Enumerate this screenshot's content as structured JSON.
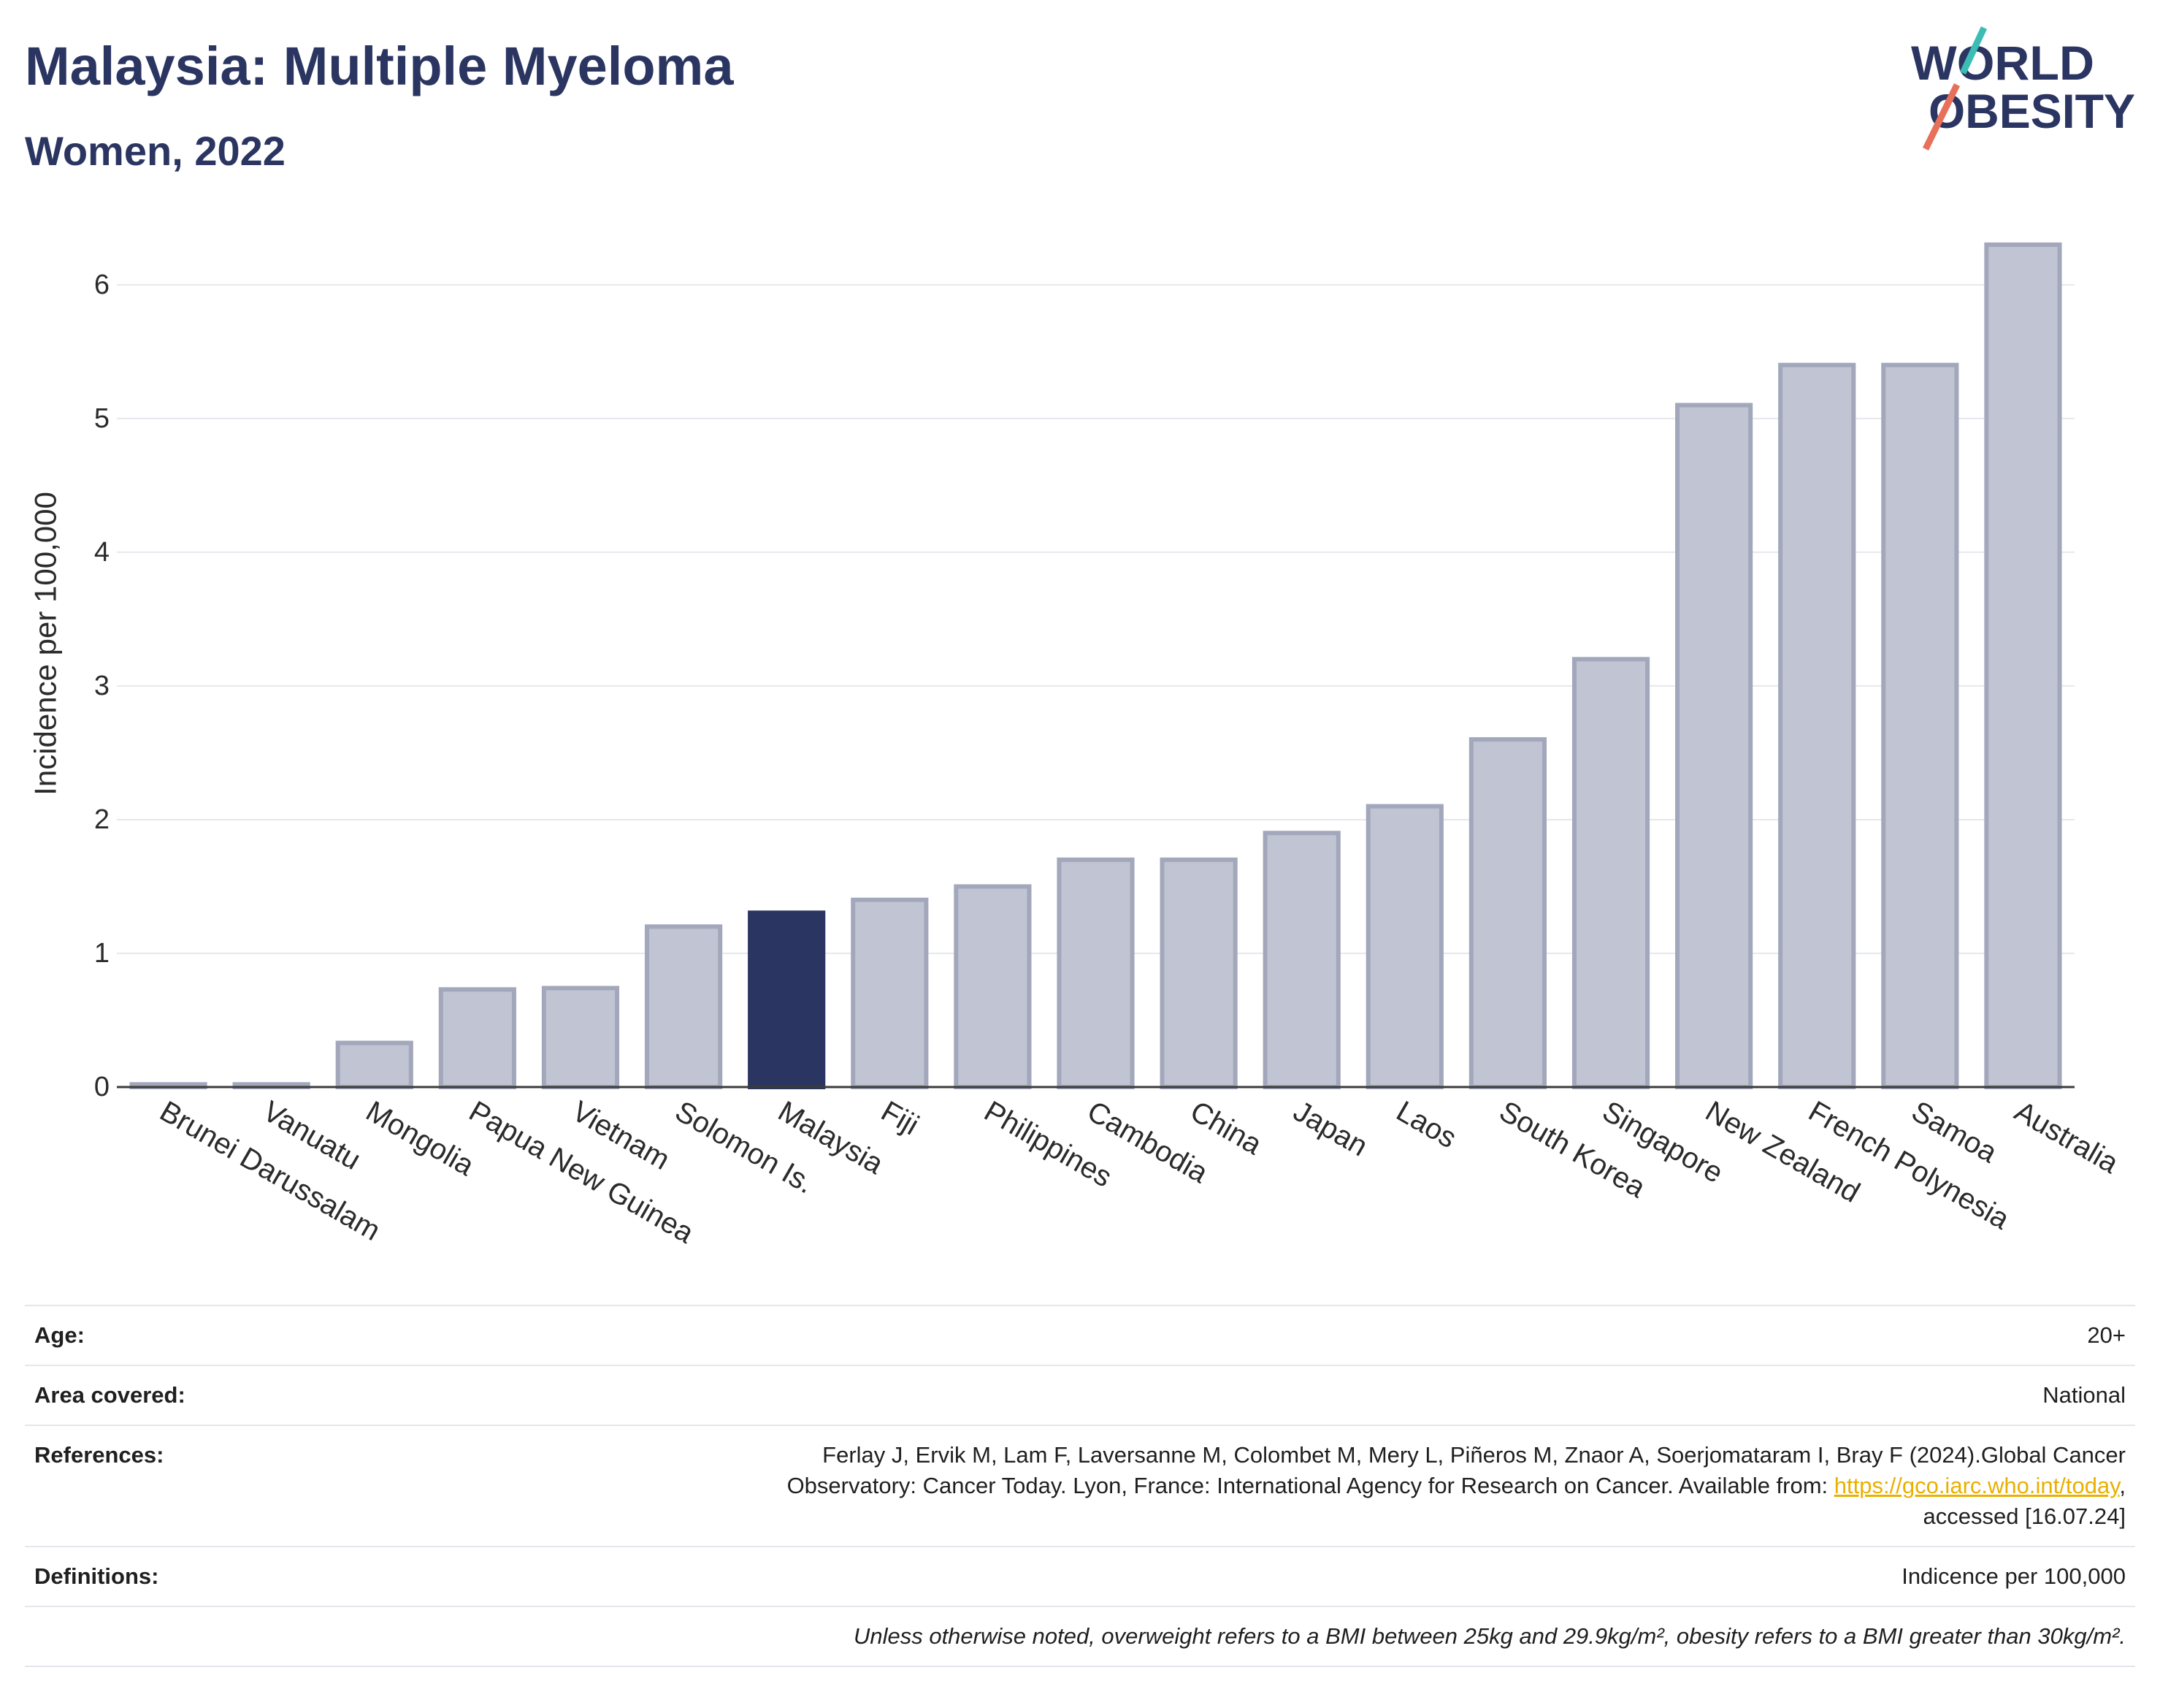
{
  "chart_data": {
    "type": "bar",
    "title": "Malaysia: Multiple Myeloma",
    "subtitle": "Women, 2022",
    "ylabel": "Incidence per 100,000",
    "categories": [
      "Brunei Darussalam",
      "Vanuatu",
      "Mongolia",
      "Papua New Guinea",
      "Vietnam",
      "Solomon Is.",
      "Malaysia",
      "Fiji",
      "Philippines",
      "Cambodia",
      "China",
      "Japan",
      "Laos",
      "South Korea",
      "Singapore",
      "New Zealand",
      "French Polynesia",
      "Samoa",
      "Australia"
    ],
    "values": [
      0.02,
      0.02,
      0.33,
      0.73,
      0.74,
      1.2,
      1.32,
      1.4,
      1.5,
      1.7,
      1.7,
      1.9,
      2.1,
      2.6,
      3.2,
      5.1,
      5.4,
      5.4,
      6.3
    ],
    "highlight": "Malaysia",
    "ylim": [
      0,
      6.6
    ],
    "yticks": [
      0,
      1,
      2,
      3,
      4,
      5,
      6
    ],
    "grid": true
  },
  "colors": {
    "title": "#2b3561",
    "bar_fill": "#c1c4d2",
    "bar_stroke": "#a2a7bb",
    "highlight": "#2b3561",
    "link": "#e9b000",
    "logo_teal": "#3bbcb4",
    "logo_coral": "#e8705a"
  },
  "logo": {
    "line1": "WORLD",
    "line2": "OBESITY"
  },
  "footer": {
    "age": {
      "label": "Age:",
      "value": "20+"
    },
    "area": {
      "label": "Area covered:",
      "value": "National"
    },
    "references": {
      "label": "References:",
      "line1": "Ferlay J, Ervik M, Lam F, Laversanne M, Colombet M, Mery L, Piñeros M, Znaor A, Soerjomataram I, Bray F (2024).Global Cancer",
      "line2": "Observatory: Cancer Today. Lyon, France: International Agency for Research on Cancer. Available from: ",
      "link": "https://gco.iarc.who.int/today",
      "line2_end": ",",
      "line3": "accessed [16.07.24]"
    },
    "definitions": {
      "label": "Definitions:",
      "value": "Indicence per 100,000"
    },
    "note": "Unless otherwise noted, overweight refers to a BMI between 25kg and 29.9kg/m², obesity refers to a BMI greater than 30kg/m²."
  }
}
